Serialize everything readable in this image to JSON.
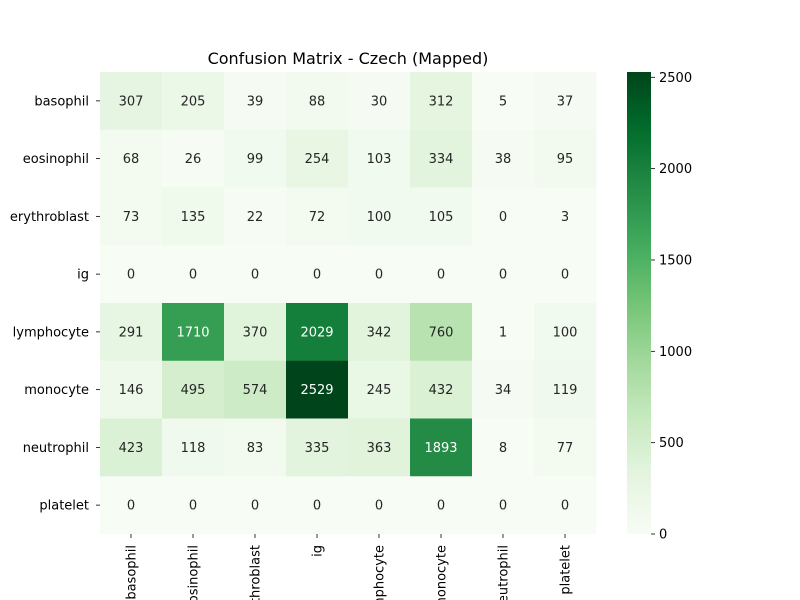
{
  "chart_data": {
    "type": "heatmap",
    "title": "Confusion Matrix - Czech (Mapped)",
    "xlabel": "",
    "ylabel": "",
    "rows": [
      "basophil",
      "eosinophil",
      "erythroblast",
      "ig",
      "lymphocyte",
      "monocyte",
      "neutrophil",
      "platelet"
    ],
    "columns": [
      "basophil",
      "eosinophil",
      "erythroblast",
      "ig",
      "lymphocyte",
      "monocyte",
      "neutrophil",
      "platelet"
    ],
    "column_tick_labels": [
      "basophil",
      "eosinophil",
      "erythroblast",
      "ig",
      "lymphocyte",
      "monocyte",
      "neutrophil",
      "platelet"
    ],
    "values": [
      [
        307,
        205,
        39,
        88,
        30,
        312,
        5,
        37
      ],
      [
        68,
        26,
        99,
        254,
        103,
        334,
        38,
        95
      ],
      [
        73,
        135,
        22,
        72,
        100,
        105,
        0,
        3
      ],
      [
        0,
        0,
        0,
        0,
        0,
        0,
        0,
        0
      ],
      [
        291,
        1710,
        370,
        2029,
        342,
        760,
        1,
        100
      ],
      [
        146,
        495,
        574,
        2529,
        245,
        432,
        34,
        119
      ],
      [
        423,
        118,
        83,
        335,
        363,
        1893,
        8,
        77
      ],
      [
        0,
        0,
        0,
        0,
        0,
        0,
        0,
        0
      ]
    ],
    "colormap": "Greens",
    "colorbar": {
      "vmin": 0,
      "vmax": 2529,
      "ticks": [
        0,
        500,
        1000,
        1500,
        2000,
        2500
      ],
      "placement": "right"
    },
    "grid": false,
    "legend": "none"
  }
}
